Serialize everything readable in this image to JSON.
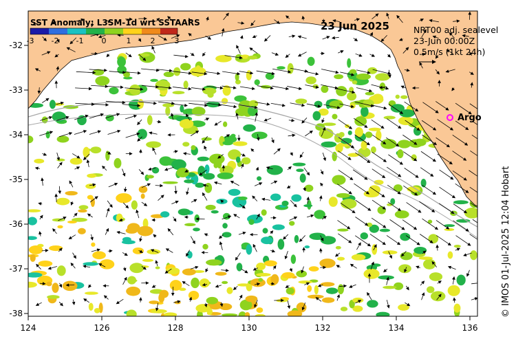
{
  "title": "SST Anomaly: L3SM-1d wrt SSTAARS",
  "date": "23 Jun 2025",
  "current": {
    "line1": "NRT00 adj. sealevel",
    "line2": "23-Jun 00:00Z",
    "line3": "0.5m/s (1kt 24h)"
  },
  "argo_label": "Argo",
  "credit": "© IMOS 01-Jul-2025 12:04 Hobart",
  "colorbar": {
    "ticks": [
      "-3",
      "-2",
      "-1",
      "0",
      "1",
      "2",
      "3"
    ],
    "colors": [
      "#1a1aa8",
      "#2f6fe0",
      "#19c2c2",
      "#22b24a",
      "#8fd31e",
      "#ffd21a",
      "#f08a1a",
      "#c0281a"
    ]
  },
  "axes": {
    "x_ticks": [
      "124",
      "126",
      "128",
      "130",
      "132",
      "134",
      "136"
    ],
    "y_ticks": [
      "-32",
      "-33",
      "-34",
      "-35",
      "-36",
      "-37",
      "-38"
    ]
  },
  "colors": {
    "land": "#fac896",
    "argo": "#ff00ff",
    "coast": "#000000",
    "isobath": "#a8a8a8"
  }
}
